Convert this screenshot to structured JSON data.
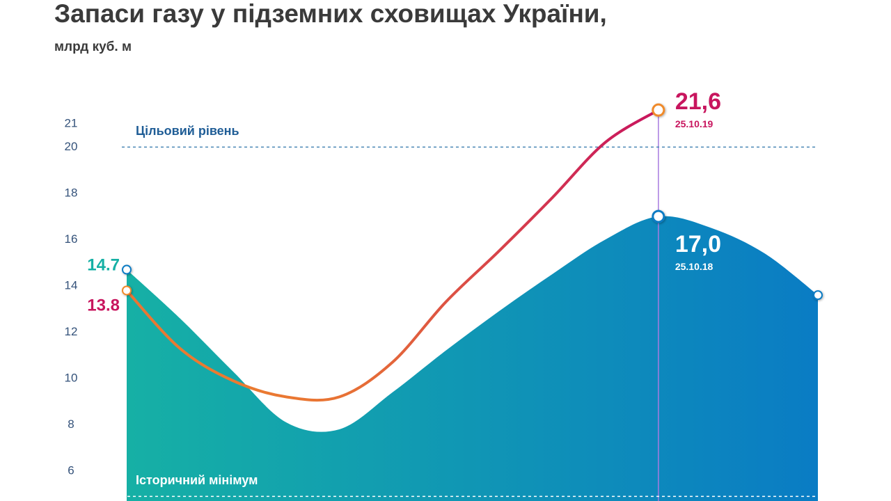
{
  "chart_data": {
    "type": "line",
    "title": "Запаси газу у підземних сховищах України,",
    "subtitle": "млрд куб. м",
    "categories": [
      null,
      null,
      null,
      null,
      null,
      null,
      null,
      null,
      null,
      null,
      null,
      null,
      null,
      null
    ],
    "ylim": [
      4.7,
      23.5
    ],
    "yticks": [
      6,
      8,
      10,
      12,
      14,
      16,
      18,
      20,
      21
    ],
    "grid": false,
    "series": [
      {
        "style": "area",
        "color": "#16b0a5",
        "color_end": "#0a7cc4",
        "values": [
          14.7,
          12.6,
          10.3,
          8.1,
          7.8,
          9.4,
          11.2,
          12.9,
          14.5,
          16.0,
          17.0,
          16.5,
          15.4,
          13.6
        ],
        "value_labels": [
          "14.7",
          null,
          null,
          null,
          null,
          null,
          null,
          null,
          null,
          null,
          "17,0",
          null,
          null,
          null
        ],
        "date_labels": [
          null,
          null,
          null,
          null,
          null,
          null,
          null,
          null,
          null,
          null,
          "25.10.18",
          null,
          null,
          null
        ]
      },
      {
        "style": "line",
        "color": "#c8155e",
        "color_end": "#f08a2a",
        "values": [
          13.8,
          11.3,
          9.9,
          9.2,
          9.2,
          10.7,
          13.3,
          15.5,
          17.8,
          20.2,
          21.6,
          null,
          null,
          null
        ],
        "value_labels": [
          "13.8",
          null,
          null,
          null,
          null,
          null,
          null,
          null,
          null,
          null,
          "21,6",
          null,
          null,
          null
        ],
        "date_labels": [
          null,
          null,
          null,
          null,
          null,
          null,
          null,
          null,
          null,
          null,
          "25.10.19",
          null,
          null,
          null
        ]
      }
    ],
    "reference_lines": [
      {
        "label": "Цільовий рівень",
        "value": 20,
        "color": "#4a86b5"
      },
      {
        "label": "Історичний мінімум",
        "value": 4.9,
        "color": "#ffffff"
      }
    ]
  }
}
